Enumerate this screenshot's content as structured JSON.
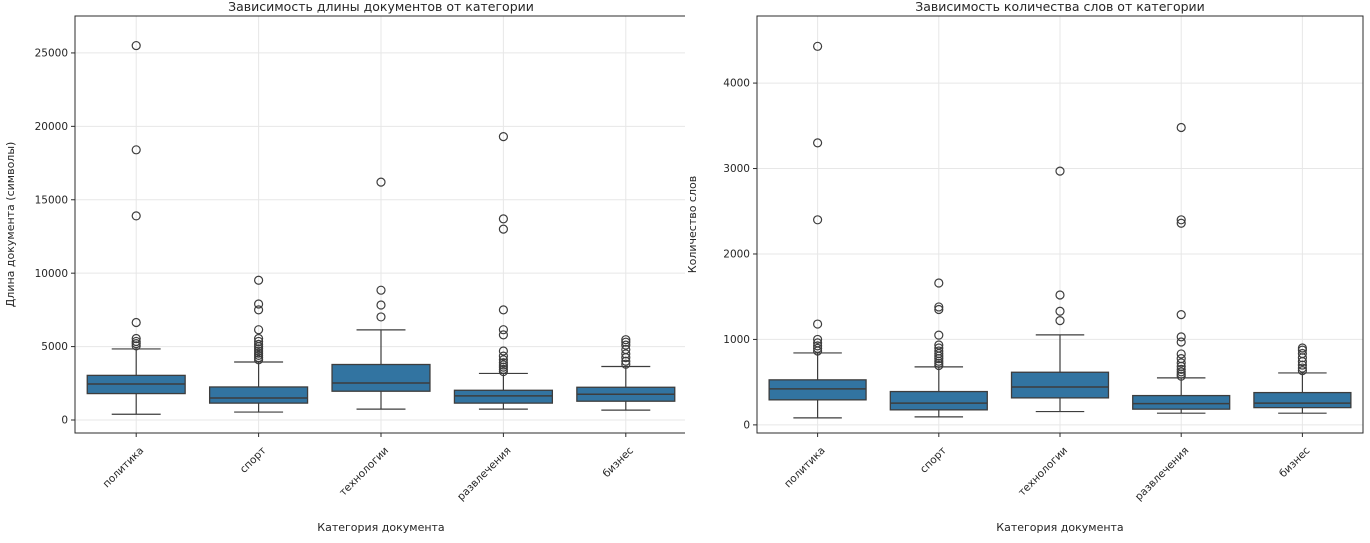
{
  "page": {
    "background": "#ffffff"
  },
  "style": {
    "box_fill": "#3274a1",
    "box_edge": "#3d3d3d",
    "whisker_color": "#3d3d3d",
    "median_color": "#3d3d3d",
    "outlier_edge": "#3d3d3d",
    "grid_color": "#e7e7e7",
    "spine_color": "#2b2b2b",
    "text_color": "#262626"
  },
  "chart_data": [
    {
      "type": "box",
      "title": "Зависимость длины документов от категории",
      "xlabel": "Категория документа",
      "ylabel": "Длина документа (символы)",
      "categories": [
        "политика",
        "спорт",
        "технологии",
        "развлечения",
        "бизнес"
      ],
      "ylim": [
        -885,
        27515
      ],
      "yticks": [
        0,
        5000,
        10000,
        15000,
        20000,
        25000
      ],
      "grid": true,
      "legend": "none",
      "series": [
        {
          "category": "политика",
          "whisker_low": 390,
          "q1": 1800,
          "median": 2450,
          "q3": 3040,
          "whisker_high": 4840,
          "outliers": [
            5050,
            5200,
            5350,
            5550,
            6640,
            13900,
            18400,
            25500
          ]
        },
        {
          "category": "спорт",
          "whisker_low": 540,
          "q1": 1150,
          "median": 1500,
          "q3": 2250,
          "whisker_high": 3950,
          "outliers": [
            4100,
            4250,
            4400,
            4550,
            4700,
            4850,
            5000,
            5150,
            5350,
            5550,
            6150,
            7500,
            7900,
            9520
          ]
        },
        {
          "category": "технологии",
          "whisker_low": 740,
          "q1": 1960,
          "median": 2520,
          "q3": 3780,
          "whisker_high": 6140,
          "outliers": [
            7020,
            7830,
            8840,
            16200
          ]
        },
        {
          "category": "развлечения",
          "whisker_low": 740,
          "q1": 1150,
          "median": 1640,
          "q3": 2025,
          "whisker_high": 3170,
          "outliers": [
            3300,
            3450,
            3600,
            3750,
            3900,
            4100,
            4350,
            4700,
            5800,
            6150,
            7500,
            13000,
            13700,
            19300
          ]
        },
        {
          "category": "бизнес",
          "whisker_low": 675,
          "q1": 1280,
          "median": 1755,
          "q3": 2230,
          "whisker_high": 3645,
          "outliers": [
            3800,
            4000,
            4250,
            4500,
            4800,
            5100,
            5300,
            5470
          ]
        }
      ]
    },
    {
      "type": "box",
      "title": "Зависимость количества слов от категории",
      "xlabel": "Категория документа",
      "ylabel": "Количество слов",
      "categories": [
        "политика",
        "спорт",
        "технологии",
        "развлечения",
        "бизнес"
      ],
      "ylim": [
        -95,
        4785
      ],
      "yticks": [
        0,
        1000,
        2000,
        3000,
        4000
      ],
      "grid": true,
      "legend": "none",
      "series": [
        {
          "category": "политика",
          "whisker_low": 82,
          "q1": 293,
          "median": 421,
          "q3": 527,
          "whisker_high": 842,
          "outliers": [
            865,
            895,
            925,
            960,
            1000,
            1180,
            2400,
            3300,
            4430
          ]
        },
        {
          "category": "спорт",
          "whisker_low": 94,
          "q1": 176,
          "median": 254,
          "q3": 390,
          "whisker_high": 679,
          "outliers": [
            695,
            720,
            745,
            775,
            805,
            835,
            865,
            900,
            935,
            1050,
            1350,
            1380,
            1660
          ]
        },
        {
          "category": "технологии",
          "whisker_low": 156,
          "q1": 316,
          "median": 444,
          "q3": 616,
          "whisker_high": 1053,
          "outliers": [
            1220,
            1330,
            1520,
            2970
          ]
        },
        {
          "category": "развлечения",
          "whisker_low": 137,
          "q1": 184,
          "median": 249,
          "q3": 343,
          "whisker_high": 550,
          "outliers": [
            570,
            595,
            620,
            650,
            685,
            725,
            775,
            830,
            970,
            1030,
            1290,
            2360,
            2400,
            3480
          ]
        },
        {
          "category": "бизнес",
          "whisker_low": 137,
          "q1": 202,
          "median": 254,
          "q3": 378,
          "whisker_high": 608,
          "outliers": [
            635,
            665,
            700,
            740,
            785,
            835,
            875,
            900
          ]
        }
      ]
    }
  ]
}
